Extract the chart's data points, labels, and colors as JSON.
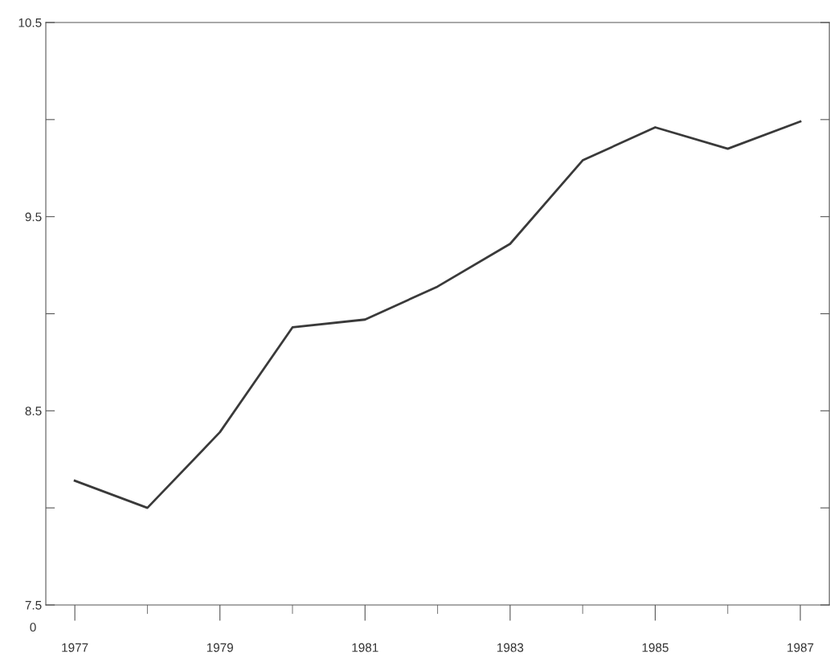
{
  "chart_data": {
    "type": "line",
    "x": [
      1977,
      1978,
      1979,
      1980,
      1981,
      1982,
      1983,
      1984,
      1985,
      1986,
      1987
    ],
    "series": [
      {
        "color": "#3a3a3a",
        "values": [
          8.14,
          8.0,
          8.39,
          8.93,
          8.97,
          9.14,
          9.36,
          9.79,
          9.96,
          9.85,
          9.99
        ]
      }
    ],
    "xlim": [
      1976.6,
      1987.4
    ],
    "xticks": [
      1977,
      {
        "value": 1978,
        "label": null
      },
      1979,
      {
        "value": 1980,
        "label": null
      },
      1981,
      {
        "value": 1982,
        "label": null
      },
      1983,
      {
        "value": 1984,
        "label": null
      },
      1985,
      {
        "value": 1986,
        "label": null
      },
      1987
    ],
    "ylim": [
      7.5,
      10.5
    ],
    "yticks": [
      7.5,
      {
        "value": 8,
        "label": null
      },
      8.5,
      {
        "value": 9,
        "label": null
      },
      9.5,
      {
        "value": 10,
        "label": null
      },
      10.5
    ],
    "annotations": [
      "0"
    ],
    "grid": false,
    "legend": false,
    "marker": "none",
    "line_style": "solid"
  }
}
